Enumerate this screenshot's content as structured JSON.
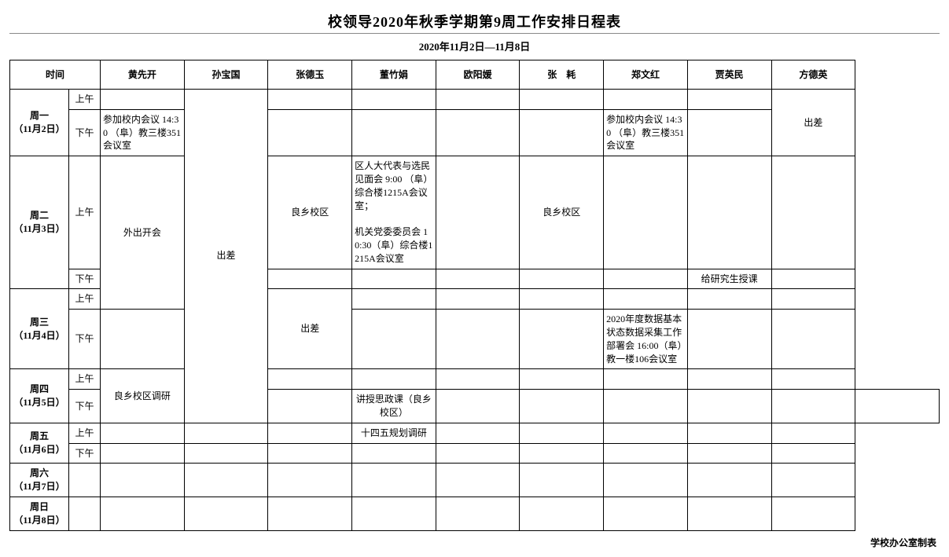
{
  "title": "校领导2020年秋季学期第9周工作安排日程表",
  "date_range": "2020年11月2日—11月8日",
  "time_header": "时间",
  "am": "上午",
  "pm": "下午",
  "leaders": [
    "黄先开",
    "孙宝国",
    "张德玉",
    "董竹娟",
    "欧阳媛",
    "张　耗",
    "郑文红",
    "贾英民",
    "方德英"
  ],
  "days": [
    {
      "label": "周一",
      "date": "（11月2日）"
    },
    {
      "label": "周二",
      "date": "（11月3日）"
    },
    {
      "label": "周三",
      "date": "（11月4日）"
    },
    {
      "label": "周四",
      "date": "（11月5日）"
    },
    {
      "label": "周五",
      "date": "（11月6日）"
    },
    {
      "label": "周六",
      "date": "（11月7日）"
    },
    {
      "label": "周日",
      "date": "（11月8日）"
    }
  ],
  "cells": {
    "mon_pm_huang": "参加校内会议 14:30 （阜）教三楼351会议室",
    "mon_pm_zheng": "参加校内会议 14:30 （阜）教三楼351会议室",
    "mon_fang": "出差",
    "tue_wed_huang": "外出开会",
    "sun_sun": "出差",
    "tue_am_zhang": "良乡校区",
    "tue_am_dong": "区人大代表与选民见面会 9:00 （阜）综合楼1215A会议室；\n\n机关党委委员会 10:30（阜）综合楼1215A会议室",
    "tue_am_zhanghao": "良乡校区",
    "tue_pm_jia": "给研究生授课",
    "wed_zhang": "出差",
    "wed_pm_zheng": "2020年度数据基本状态数据采集工作部署会 16:00（阜）教一楼106会议室",
    "thu_huang": "良乡校区调研",
    "thu_pm_zhang": "讲授思政课（良乡校区）",
    "fri_am_dong": "十四五规划调研",
    "footer": "学校办公室制表"
  },
  "style": {
    "border_color": "#000000",
    "background": "#ffffff",
    "title_fontsize": 18,
    "body_fontsize": 12
  }
}
